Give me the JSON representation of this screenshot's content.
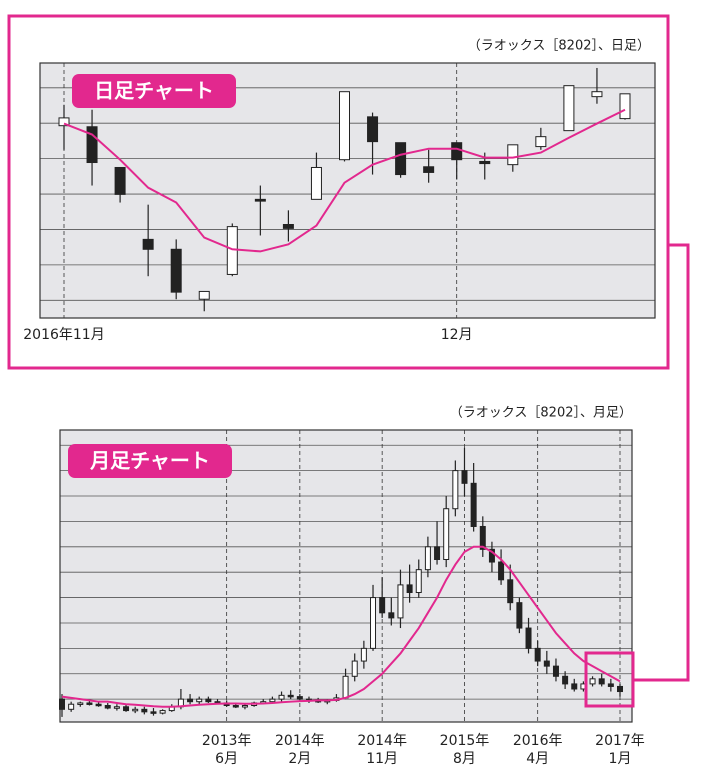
{
  "chart_data": [
    {
      "type": "candlestick",
      "title": "日足チャート",
      "subtitle": "（ラオックス［8202］、日足）",
      "categories": [
        "2016年11月",
        null,
        null,
        null,
        null,
        null,
        null,
        null,
        null,
        null,
        null,
        null,
        null,
        null,
        "12月",
        null,
        null,
        null,
        null,
        null,
        null
      ],
      "open": [
        5.93,
        5.9,
        4.75,
        2.72,
        2.44,
        1.03,
        1.73,
        3.85,
        3.14,
        3.85,
        4.97,
        6.18,
        5.45,
        4.77,
        5.45,
        4.92,
        4.83,
        5.34,
        5.79,
        6.75,
        6.13
      ],
      "high": [
        6.52,
        6.38,
        4.75,
        3.7,
        2.72,
        1.25,
        3.17,
        4.24,
        3.54,
        5.17,
        6.89,
        6.3,
        5.45,
        5.25,
        5.45,
        5.17,
        5.39,
        5.87,
        7.06,
        7.56,
        6.83
      ],
      "low": [
        5.25,
        4.24,
        3.76,
        1.68,
        1.03,
        0.69,
        1.68,
        2.83,
        2.66,
        3.85,
        4.92,
        4.55,
        4.46,
        4.32,
        4.41,
        4.41,
        4.63,
        5.25,
        5.79,
        6.55,
        6.1
      ],
      "close": [
        6.15,
        4.89,
        3.99,
        2.44,
        1.23,
        1.25,
        3.08,
        3.8,
        3.03,
        4.75,
        6.89,
        5.48,
        4.55,
        4.61,
        4.97,
        4.86,
        5.39,
        5.62,
        7.06,
        6.89,
        6.83
      ],
      "moving_average": {
        "color": "#e2288e",
        "values": [
          5.99,
          5.68,
          4.97,
          4.18,
          3.76,
          2.77,
          2.44,
          2.38,
          2.58,
          3.11,
          4.32,
          4.83,
          5.11,
          5.28,
          5.28,
          5.03,
          5.03,
          5.17,
          5.59,
          5.99,
          6.38
        ]
      },
      "up_color": "#ffffff",
      "down_color": "#222222",
      "ylim": [
        0.5,
        7.7
      ],
      "yticks": [
        1,
        2,
        3,
        4,
        5,
        6,
        7
      ],
      "show_ytick_labels": false,
      "grid": true
    },
    {
      "type": "candlestick",
      "title": "月足チャート",
      "subtitle": "（ラオックス［8202］、月足）",
      "categories": [
        null,
        null,
        null,
        null,
        null,
        null,
        null,
        null,
        null,
        null,
        null,
        null,
        null,
        null,
        null,
        null,
        null,
        null,
        "2013年\n6月",
        null,
        null,
        null,
        null,
        null,
        null,
        null,
        "2014年\n2月",
        null,
        null,
        null,
        null,
        null,
        null,
        null,
        null,
        "2014年\n11月",
        null,
        null,
        null,
        null,
        null,
        null,
        null,
        null,
        "2015年\n8月",
        null,
        null,
        null,
        null,
        null,
        null,
        null,
        "2016年\n4月",
        null,
        null,
        null,
        null,
        null,
        null,
        null,
        null,
        "2017年\n1月"
      ],
      "open": [
        1.0,
        0.6,
        0.8,
        0.85,
        0.8,
        0.75,
        0.65,
        0.7,
        0.55,
        0.6,
        0.5,
        0.45,
        0.55,
        0.7,
        1.0,
        0.9,
        1.0,
        0.9,
        0.85,
        0.75,
        0.7,
        0.75,
        0.85,
        0.9,
        1.0,
        1.15,
        1.1,
        1.0,
        0.95,
        0.9,
        0.95,
        1.05,
        1.9,
        2.5,
        3.0,
        5.0,
        4.4,
        4.2,
        5.5,
        5.2,
        6.1,
        7.0,
        6.5,
        8.5,
        10.0,
        9.5,
        7.8,
        6.9,
        6.4,
        5.7,
        4.8,
        3.8,
        3.0,
        2.5,
        2.3,
        1.9,
        1.6,
        1.4,
        1.6,
        1.8,
        1.6,
        1.5
      ],
      "high": [
        1.2,
        0.9,
        0.9,
        0.95,
        0.9,
        0.85,
        0.8,
        0.8,
        0.7,
        0.7,
        0.65,
        0.6,
        0.8,
        1.4,
        1.2,
        1.1,
        1.1,
        1.0,
        0.95,
        0.85,
        0.8,
        0.9,
        1.0,
        1.1,
        1.3,
        1.35,
        1.2,
        1.1,
        1.05,
        1.0,
        1.2,
        2.2,
        2.8,
        3.3,
        5.5,
        5.8,
        5.0,
        6.1,
        6.3,
        6.5,
        7.4,
        8.0,
        9.0,
        10.4,
        10.9,
        10.3,
        8.2,
        7.2,
        6.9,
        6.3,
        5.0,
        4.2,
        3.3,
        2.9,
        2.6,
        2.1,
        1.8,
        1.7,
        1.9,
        2.0,
        1.8,
        1.6
      ],
      "low": [
        0.3,
        0.5,
        0.7,
        0.75,
        0.7,
        0.6,
        0.55,
        0.5,
        0.45,
        0.4,
        0.35,
        0.4,
        0.5,
        0.6,
        0.8,
        0.8,
        0.85,
        0.8,
        0.7,
        0.65,
        0.6,
        0.7,
        0.8,
        0.85,
        0.9,
        1.0,
        0.95,
        0.85,
        0.85,
        0.8,
        0.9,
        1.0,
        1.7,
        2.2,
        2.9,
        4.2,
        3.9,
        3.8,
        4.8,
        5.0,
        5.8,
        6.3,
        6.2,
        8.2,
        9.0,
        7.6,
        6.6,
        6.0,
        5.5,
        4.5,
        3.6,
        2.8,
        2.3,
        2.0,
        1.7,
        1.4,
        1.3,
        1.3,
        1.5,
        1.5,
        1.3,
        1.1
      ],
      "close": [
        0.6,
        0.8,
        0.85,
        0.8,
        0.75,
        0.65,
        0.7,
        0.55,
        0.6,
        0.5,
        0.45,
        0.55,
        0.7,
        1.0,
        0.9,
        1.0,
        0.9,
        0.85,
        0.75,
        0.7,
        0.75,
        0.85,
        0.9,
        1.0,
        1.15,
        1.1,
        1.0,
        0.95,
        0.9,
        0.95,
        1.05,
        1.9,
        2.5,
        3.0,
        5.0,
        4.4,
        4.2,
        5.5,
        5.2,
        6.1,
        7.0,
        6.5,
        8.5,
        10.0,
        9.5,
        7.8,
        6.9,
        6.4,
        5.7,
        4.8,
        3.8,
        3.0,
        2.5,
        2.3,
        1.9,
        1.6,
        1.4,
        1.6,
        1.8,
        1.6,
        1.5,
        1.3
      ],
      "moving_average": {
        "color": "#e2288e",
        "values": [
          1.1,
          1.05,
          1.0,
          0.95,
          0.9,
          0.9,
          0.85,
          0.8,
          0.78,
          0.75,
          0.72,
          0.7,
          0.7,
          0.72,
          0.75,
          0.78,
          0.8,
          0.82,
          0.83,
          0.83,
          0.82,
          0.82,
          0.83,
          0.85,
          0.88,
          0.9,
          0.92,
          0.93,
          0.95,
          0.95,
          0.97,
          1.05,
          1.2,
          1.4,
          1.7,
          2.0,
          2.4,
          2.8,
          3.3,
          3.8,
          4.4,
          5.0,
          5.7,
          6.3,
          6.8,
          7.0,
          7.0,
          6.8,
          6.5,
          6.1,
          5.6,
          5.1,
          4.6,
          4.1,
          3.6,
          3.2,
          2.8,
          2.5,
          2.3,
          2.1,
          1.9,
          1.7
        ]
      },
      "up_color": "#ffffff",
      "down_color": "#222222",
      "ylim": [
        0.1,
        11.6
      ],
      "yticks": [
        1,
        2,
        3,
        4,
        5,
        6,
        7,
        8,
        9,
        10,
        11
      ],
      "show_ytick_labels": false,
      "grid": true
    }
  ]
}
